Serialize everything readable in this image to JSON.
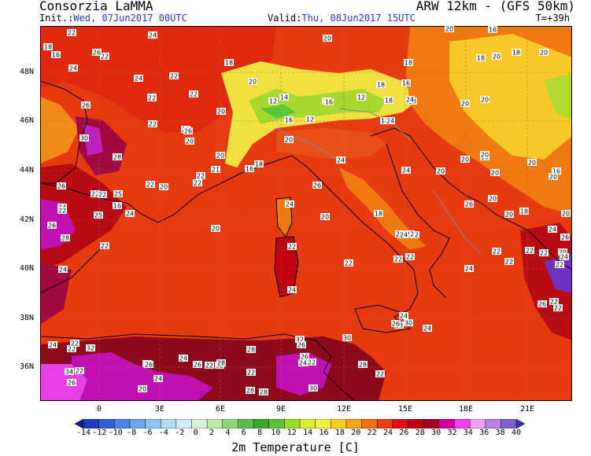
{
  "header": {
    "left": "Consorzia LaMMA",
    "right": "ARW 12km - (GFS 50km)",
    "init_label": "Init.:",
    "init_value": "Wed, 07Jun2017 00UTC",
    "valid_label": "Valid:",
    "valid_value": "Thu, 08Jun2017 15UTC",
    "lead": "T=+39h"
  },
  "lat_labels": [
    "48N",
    "46N",
    "44N",
    "42N",
    "40N",
    "38N",
    "36N"
  ],
  "lon_labels": [
    "0",
    "3E",
    "6E",
    "9E",
    "12E",
    "15E",
    "18E",
    "21E"
  ],
  "colorbar": {
    "title": "2m Temperature [C]",
    "ticks": [
      "-14",
      "-12",
      "-10",
      "-8",
      "-6",
      "-4",
      "-2",
      "0",
      "2",
      "4",
      "6",
      "8",
      "10",
      "12",
      "14",
      "16",
      "18",
      "20",
      "22",
      "24",
      "26",
      "28",
      "30",
      "32",
      "34",
      "36",
      "38",
      "40"
    ],
    "colors": [
      "#0a1e8c",
      "#1e3cbe",
      "#2e5fd8",
      "#4a86e8",
      "#6aa8f0",
      "#8cc4f4",
      "#b0dcf8",
      "#d0ecf8",
      "#d8f4d0",
      "#b8eaa8",
      "#8cd878",
      "#5cc048",
      "#38a830",
      "#60c030",
      "#a0d828",
      "#d8ec30",
      "#f0f040",
      "#f8d020",
      "#f8a018",
      "#f07010",
      "#e84010",
      "#e01010",
      "#c00010",
      "#a00020",
      "#d000a0",
      "#f040f0",
      "#f8a0f8",
      "#c080e0",
      "#8060d0",
      "#4030b0"
    ],
    "color_anchors": {
      "t20": "#f07a10",
      "t22": "#e83a10",
      "t24": "#e01a10",
      "t26": "#b80c14",
      "t28": "#8c0a1c",
      "t30": "#c010b4",
      "t32": "#e840e8",
      "t12": "#58c838",
      "t16": "#e8ec40"
    }
  },
  "map_labels": [
    {
      "t": "22"
    },
    {
      "t": "24"
    },
    {
      "t": "20"
    },
    {
      "t": "20"
    },
    {
      "t": "16"
    },
    {
      "t": "18"
    },
    {
      "t": "16"
    },
    {
      "t": "22"
    },
    {
      "t": "24"
    },
    {
      "t": "22"
    },
    {
      "t": "24"
    },
    {
      "t": "18"
    },
    {
      "t": "20"
    },
    {
      "t": "18"
    },
    {
      "t": "20"
    },
    {
      "t": "22"
    },
    {
      "t": "18"
    },
    {
      "t": "18"
    },
    {
      "t": "26"
    },
    {
      "t": "22"
    },
    {
      "t": "20"
    },
    {
      "t": "22"
    },
    {
      "t": "12"
    },
    {
      "t": "14"
    },
    {
      "t": "18"
    },
    {
      "t": "16"
    },
    {
      "t": "12"
    },
    {
      "t": "16"
    },
    {
      "t": "18"
    },
    {
      "t": "26"
    },
    {
      "t": "22"
    },
    {
      "t": "20"
    },
    {
      "t": "16"
    },
    {
      "t": "12"
    },
    {
      "t": "16"
    },
    {
      "t": "18"
    },
    {
      "t": "18"
    },
    {
      "t": "24"
    },
    {
      "t": "26"
    },
    {
      "t": "26"
    },
    {
      "t": "20"
    },
    {
      "t": "20"
    },
    {
      "t": "30"
    },
    {
      "t": "28"
    },
    {
      "t": "22"
    },
    {
      "t": "20"
    },
    {
      "t": "24"
    },
    {
      "t": "20"
    },
    {
      "t": "21"
    },
    {
      "t": "16"
    },
    {
      "t": "22"
    },
    {
      "t": "20"
    },
    {
      "t": "16"
    },
    {
      "t": "20"
    },
    {
      "t": "20"
    },
    {
      "t": "20"
    },
    {
      "t": "20"
    },
    {
      "t": "16"
    },
    {
      "t": "20"
    },
    {
      "t": "20"
    },
    {
      "t": "22"
    },
    {
      "t": "20"
    },
    {
      "t": "22"
    },
    {
      "t": "25"
    },
    {
      "t": "22"
    },
    {
      "t": "26"
    },
    {
      "t": "22"
    },
    {
      "t": "22"
    },
    {
      "t": "18"
    },
    {
      "t": "26"
    },
    {
      "t": "24"
    },
    {
      "t": "20"
    },
    {
      "t": "16"
    },
    {
      "t": "24"
    },
    {
      "t": "25"
    },
    {
      "t": "24"
    },
    {
      "t": "20"
    },
    {
      "t": "18"
    },
    {
      "t": "20"
    },
    {
      "t": "18"
    },
    {
      "t": "26"
    },
    {
      "t": "28"
    },
    {
      "t": "22"
    },
    {
      "t": "20"
    },
    {
      "t": "22"
    },
    {
      "t": "20"
    },
    {
      "t": "24"
    },
    {
      "t": "26"
    },
    {
      "t": "22"
    },
    {
      "t": "22"
    },
    {
      "t": "24"
    },
    {
      "t": "26"
    },
    {
      "t": "22"
    },
    {
      "t": "24"
    },
    {
      "t": "24"
    },
    {
      "t": "22"
    },
    {
      "t": "24"
    },
    {
      "t": "22"
    },
    {
      "t": "22"
    },
    {
      "t": "22"
    },
    {
      "t": "20"
    },
    {
      "t": "24"
    },
    {
      "t": "22"
    },
    {
      "t": "22"
    },
    {
      "t": "24"
    },
    {
      "t": "26"
    },
    {
      "t": "22"
    },
    {
      "t": "22"
    },
    {
      "t": "24"
    },
    {
      "t": "22"
    },
    {
      "t": "24"
    },
    {
      "t": "22"
    },
    {
      "t": "28"
    },
    {
      "t": "24"
    },
    {
      "t": "24"
    },
    {
      "t": "30"
    },
    {
      "t": "32"
    },
    {
      "t": "30"
    },
    {
      "t": "26"
    },
    {
      "t": "28"
    },
    {
      "t": "22"
    },
    {
      "t": "24"
    },
    {
      "t": "32"
    },
    {
      "t": "34"
    },
    {
      "t": "34"
    },
    {
      "t": "32"
    },
    {
      "t": "28"
    },
    {
      "t": "26"
    },
    {
      "t": "28"
    },
    {
      "t": "24"
    },
    {
      "t": "22"
    },
    {
      "t": "22"
    },
    {
      "t": "26"
    },
    {
      "t": "26"
    },
    {
      "t": "22"
    },
    {
      "t": "24"
    },
    {
      "t": "28"
    },
    {
      "t": "28"
    },
    {
      "t": "30"
    },
    {
      "t": "22"
    },
    {
      "t": "26"
    },
    {
      "t": "22"
    },
    {
      "t": "20"
    },
    {
      "t": "24"
    },
    {
      "t": "22"
    },
    {
      "t": "26"
    }
  ]
}
